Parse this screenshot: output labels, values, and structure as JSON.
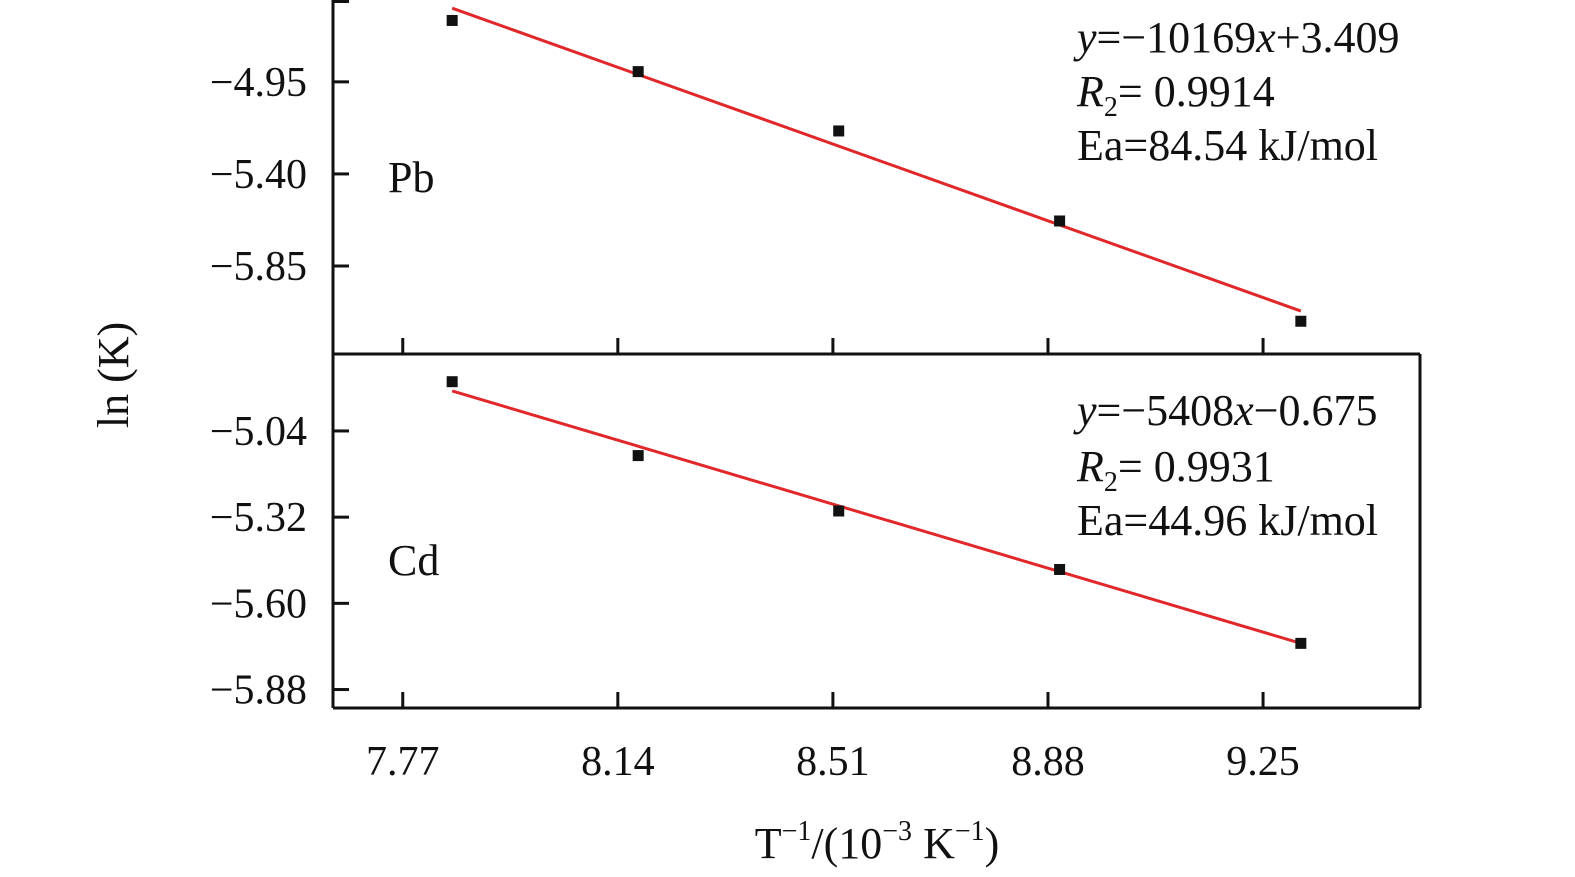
{
  "chart_data": {
    "type": "scatter",
    "xlabel": "T⁻¹/(10⁻³ K⁻¹)",
    "ylabel": "ln (K)",
    "x_ticks": [
      "7.77",
      "8.14",
      "8.51",
      "8.88",
      "9.25"
    ],
    "xlim": [
      7.65,
      9.52
    ],
    "x_scale": "linear",
    "grid": false,
    "panels": [
      {
        "label": "Pb",
        "ylim": [
          -6.28,
          -4.55
        ],
        "y_ticks": [
          "−4.95",
          "−5.40",
          "−5.85"
        ],
        "points": [
          {
            "x": 7.855,
            "y": -4.65
          },
          {
            "x": 8.175,
            "y": -4.9
          },
          {
            "x": 8.52,
            "y": -5.19
          },
          {
            "x": 8.9,
            "y": -5.63
          },
          {
            "x": 9.315,
            "y": -6.12
          }
        ],
        "fit": {
          "x1": 7.855,
          "y1": -4.59,
          "x2": 9.315,
          "y2": -6.07
        },
        "annotation": [
          "y=−10169x+3.409",
          "R2= 0.9914",
          "Ea=84.54 kJ/mol"
        ]
      },
      {
        "label": "Cd",
        "ylim": [
          -5.94,
          -4.79
        ],
        "y_ticks": [
          "−5.04",
          "−5.32",
          "−5.60",
          "−5.88"
        ],
        "points": [
          {
            "x": 7.855,
            "y": -4.88
          },
          {
            "x": 8.175,
            "y": -5.12
          },
          {
            "x": 8.52,
            "y": -5.3
          },
          {
            "x": 8.9,
            "y": -5.49
          },
          {
            "x": 9.315,
            "y": -5.73
          }
        ],
        "fit": {
          "x1": 7.855,
          "y1": -4.91,
          "x2": 9.315,
          "y2": -5.73
        },
        "annotation": [
          "y=−5408x−0.675",
          "R2= 0.9931",
          "Ea=44.96 kJ/mol"
        ]
      }
    ]
  }
}
